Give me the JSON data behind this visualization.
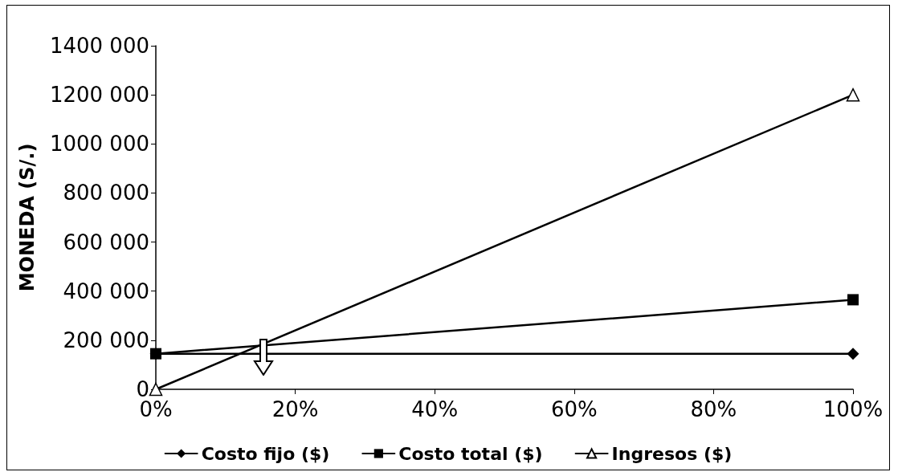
{
  "chart_data": {
    "type": "line",
    "ylabel": "MONEDA (S/.)",
    "x": [
      0,
      100
    ],
    "series": [
      {
        "name": "Costo fijo ($)",
        "color": "#000000",
        "marker": "diamond",
        "values": [
          145000,
          145000
        ]
      },
      {
        "name": "Costo total ($)",
        "color": "#000000",
        "marker": "square",
        "values": [
          145000,
          365000
        ]
      },
      {
        "name": "Ingresos ($)",
        "color": "#000000",
        "marker": "triangle",
        "values": [
          0,
          1200000
        ]
      }
    ],
    "xlim": [
      0,
      100
    ],
    "xticks": [
      {
        "value": 0,
        "label": "0%"
      },
      {
        "value": 20,
        "label": "20%"
      },
      {
        "value": 40,
        "label": "40%"
      },
      {
        "value": 60,
        "label": "60%"
      },
      {
        "value": 80,
        "label": "80%"
      },
      {
        "value": 100,
        "label": "100%"
      }
    ],
    "ylim": [
      0,
      1400000
    ],
    "yticks": [
      0,
      {
        "value": 200000,
        "label": "200 000"
      },
      {
        "value": 400000,
        "label": "400 000"
      },
      {
        "value": 600000,
        "label": "600 000"
      },
      {
        "value": 800000,
        "label": "800 000"
      },
      {
        "value": 1000000,
        "label": "1000 000"
      },
      {
        "value": 1200000,
        "label": "1200 000"
      },
      {
        "value": 1400000,
        "label": "1400 000"
      }
    ],
    "grid": false,
    "legend": "bottom",
    "line_style": "solid"
  }
}
